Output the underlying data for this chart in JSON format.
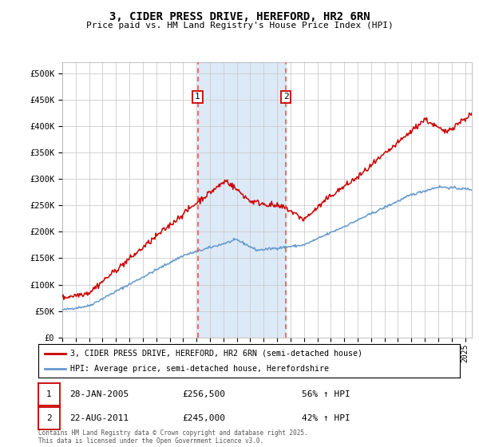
{
  "title": "3, CIDER PRESS DRIVE, HEREFORD, HR2 6RN",
  "subtitle": "Price paid vs. HM Land Registry's House Price Index (HPI)",
  "ylim": [
    0,
    520000
  ],
  "yticks": [
    0,
    50000,
    100000,
    150000,
    200000,
    250000,
    300000,
    350000,
    400000,
    450000,
    500000
  ],
  "ytick_labels": [
    "£0",
    "£50K",
    "£100K",
    "£150K",
    "£200K",
    "£250K",
    "£300K",
    "£350K",
    "£400K",
    "£450K",
    "£500K"
  ],
  "xlim_start": 1995.0,
  "xlim_end": 2025.5,
  "sale1_date": 2005.08,
  "sale1_price": 256500,
  "sale1_label": "1",
  "sale2_date": 2011.65,
  "sale2_price": 245000,
  "sale2_label": "2",
  "shade_color": "#dce9f7",
  "vline_color": "#ff4444",
  "property_line_color": "#cc0000",
  "hpi_line_color": "#6699cc",
  "legend_property": "3, CIDER PRESS DRIVE, HEREFORD, HR2 6RN (semi-detached house)",
  "legend_hpi": "HPI: Average price, semi-detached house, Herefordshire",
  "table_row1_num": "1",
  "table_row1_date": "28-JAN-2005",
  "table_row1_price": "£256,500",
  "table_row1_hpi": "56% ↑ HPI",
  "table_row2_num": "2",
  "table_row2_date": "22-AUG-2011",
  "table_row2_price": "£245,000",
  "table_row2_hpi": "42% ↑ HPI",
  "footer_line1": "Contains HM Land Registry data © Crown copyright and database right 2025.",
  "footer_line2": "This data is licensed under the Open Government Licence v3.0.",
  "background_color": "#ffffff",
  "grid_color": "#cccccc",
  "marker_y": 455000,
  "noise_seed": 42
}
